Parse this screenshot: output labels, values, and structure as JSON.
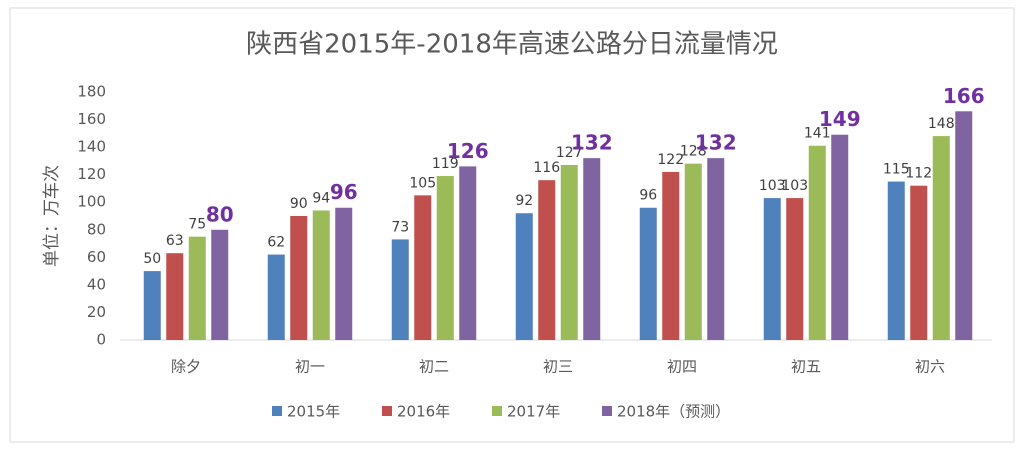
{
  "chart_data": {
    "type": "bar",
    "title": "陕西省2015年-2018年高速公路分日流量情况",
    "y_label": "单位：万车次",
    "categories": [
      "除夕",
      "初一",
      "初二",
      "初三",
      "初四",
      "初五",
      "初六"
    ],
    "series": [
      {
        "name": "2015年",
        "color": "#4f81bd",
        "values": [
          50,
          62,
          73,
          92,
          96,
          103,
          115
        ]
      },
      {
        "name": "2016年",
        "color": "#c0504d",
        "values": [
          63,
          90,
          105,
          116,
          122,
          103,
          112
        ]
      },
      {
        "name": "2017年",
        "color": "#9bbb59",
        "values": [
          75,
          94,
          119,
          127,
          128,
          141,
          148
        ]
      },
      {
        "name": "2018年（预测）",
        "color": "#8064a2",
        "values": [
          80,
          96,
          126,
          132,
          132,
          149,
          166
        ]
      }
    ],
    "ylim": [
      0,
      180
    ],
    "yticks": [
      0,
      20,
      40,
      60,
      80,
      100,
      120,
      140,
      160,
      180
    ],
    "grid": false
  }
}
